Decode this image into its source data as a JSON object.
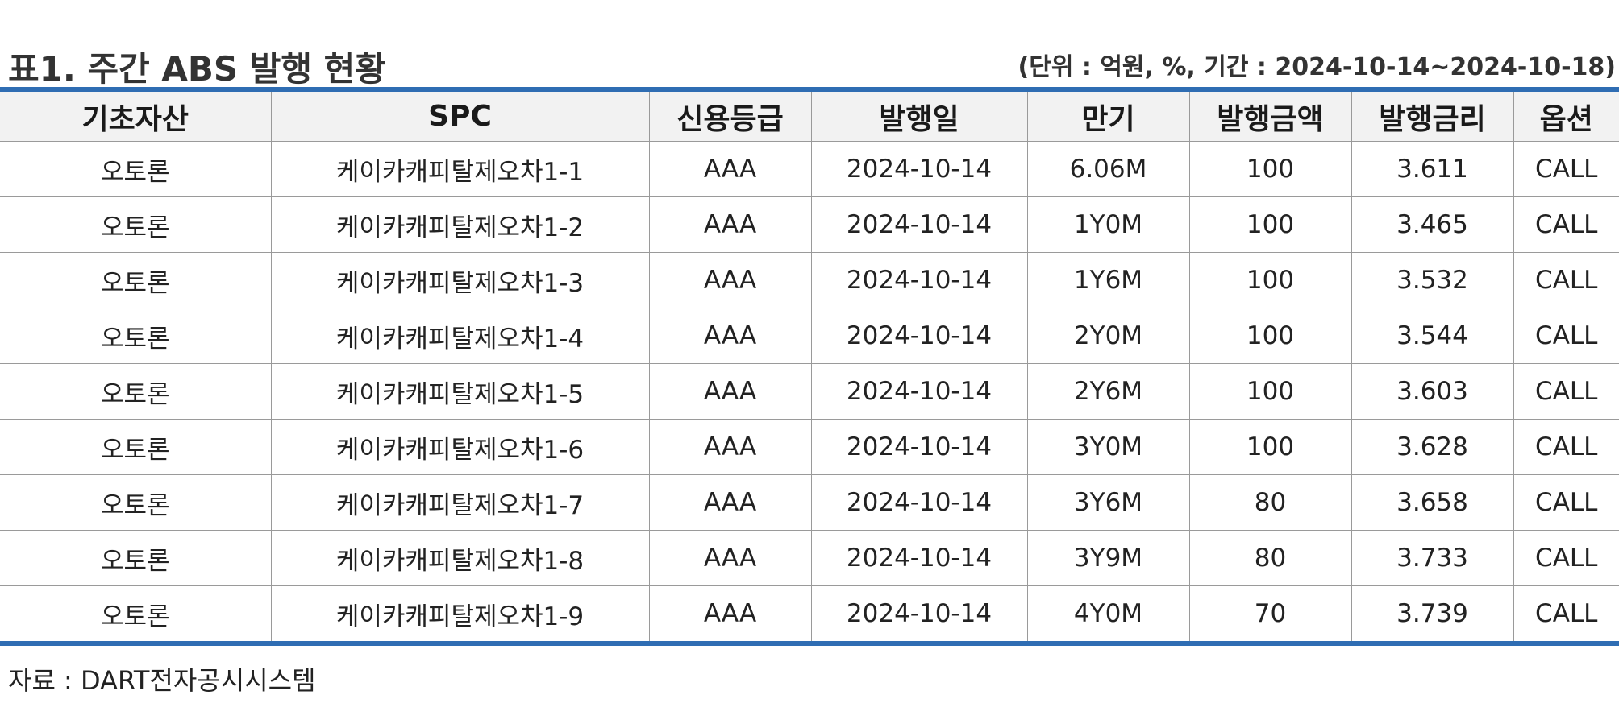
{
  "title": "표1. 주간 ABS 발행 현황",
  "unit_note": "(단위 : 억원, %, 기간 : 2024-10-14~2024-10-18)",
  "table": {
    "headers": [
      "기초자산",
      "SPC",
      "신용등급",
      "발행일",
      "만기",
      "발행금액",
      "발행금리",
      "옵션"
    ],
    "rows": [
      [
        "오토론",
        "케이카캐피탈제오차1-1",
        "AAA",
        "2024-10-14",
        "6.06M",
        "100",
        "3.611",
        "CALL"
      ],
      [
        "오토론",
        "케이카캐피탈제오차1-2",
        "AAA",
        "2024-10-14",
        "1Y0M",
        "100",
        "3.465",
        "CALL"
      ],
      [
        "오토론",
        "케이카캐피탈제오차1-3",
        "AAA",
        "2024-10-14",
        "1Y6M",
        "100",
        "3.532",
        "CALL"
      ],
      [
        "오토론",
        "케이카캐피탈제오차1-4",
        "AAA",
        "2024-10-14",
        "2Y0M",
        "100",
        "3.544",
        "CALL"
      ],
      [
        "오토론",
        "케이카캐피탈제오차1-5",
        "AAA",
        "2024-10-14",
        "2Y6M",
        "100",
        "3.603",
        "CALL"
      ],
      [
        "오토론",
        "케이카캐피탈제오차1-6",
        "AAA",
        "2024-10-14",
        "3Y0M",
        "100",
        "3.628",
        "CALL"
      ],
      [
        "오토론",
        "케이카캐피탈제오차1-7",
        "AAA",
        "2024-10-14",
        "3Y6M",
        "80",
        "3.658",
        "CALL"
      ],
      [
        "오토론",
        "케이카캐피탈제오차1-8",
        "AAA",
        "2024-10-14",
        "3Y9M",
        "80",
        "3.733",
        "CALL"
      ],
      [
        "오토론",
        "케이카캐피탈제오차1-9",
        "AAA",
        "2024-10-14",
        "4Y0M",
        "70",
        "3.739",
        "CALL"
      ]
    ]
  },
  "source": "자료 : DART전자공시시스템",
  "colors": {
    "accent_rule": "#2f6db3",
    "header_bg": "#f2f2f2",
    "grid_line": "#9a9a9a"
  }
}
